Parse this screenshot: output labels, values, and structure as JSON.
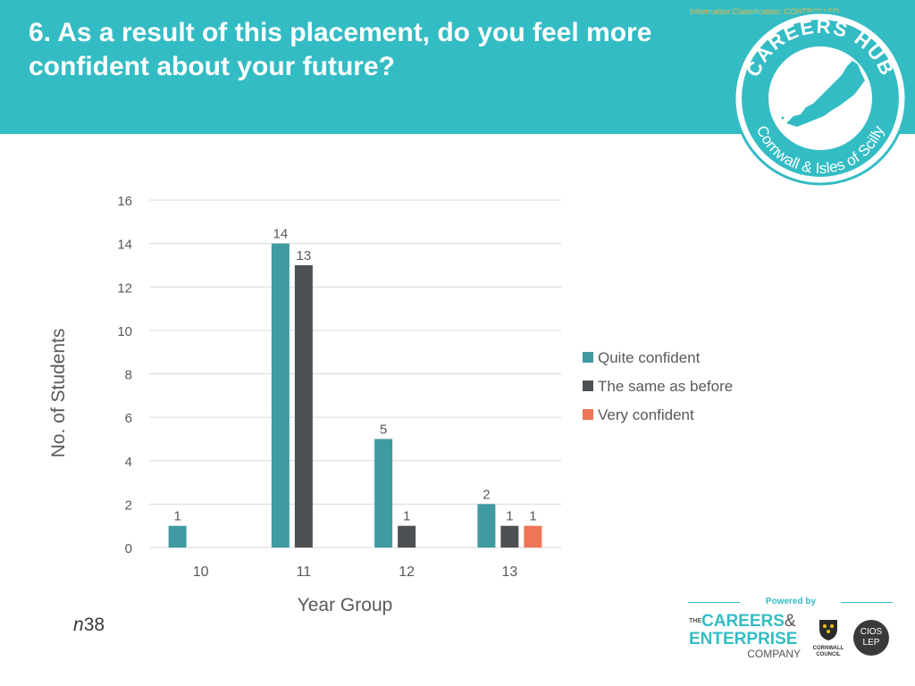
{
  "slide": {
    "title": "6. As a result of this placement, do you feel more confident about your future?",
    "classification": "Information Classification: CONTROLLED",
    "n_prefix": "n",
    "n_value": "38"
  },
  "hub_logo": {
    "top_text": "CAREERS HUB",
    "bottom_text": "Cornwall & Isles of Scilly"
  },
  "footer": {
    "powered_by": "Powered by",
    "cec_the": "THE",
    "cec_careers": "CAREERS",
    "cec_amp": "&",
    "cec_enterprise": "ENTERPRISE",
    "cec_company": "COMPANY",
    "council_small": "Cornwall Council",
    "council_name": "CORNWALL COUNCIL",
    "lep_line1": "CIOS",
    "lep_line2": "LEP"
  },
  "colors": {
    "header": "#34bcc4",
    "quite_confident": "#3f9aa2",
    "same_as_before": "#4c5053",
    "very_confident": "#ee7555",
    "grid": "#d9d9d9",
    "text": "#595959"
  },
  "chart_data": {
    "type": "bar",
    "title": "",
    "xlabel": "Year Group",
    "ylabel": "No. of Students",
    "categories": [
      "10",
      "11",
      "12",
      "13"
    ],
    "ylim": [
      0,
      16
    ],
    "yticks": [
      0,
      2,
      4,
      6,
      8,
      10,
      12,
      14,
      16
    ],
    "legend_position": "right",
    "grid": true,
    "series": [
      {
        "name": "Quite confident",
        "values": [
          1,
          14,
          5,
          2
        ],
        "color": "#3f9aa2"
      },
      {
        "name": "The same as before",
        "values": [
          0,
          13,
          1,
          1
        ],
        "color": "#4c5053"
      },
      {
        "name": "Very confident",
        "values": [
          0,
          0,
          0,
          1
        ],
        "color": "#ee7555"
      }
    ]
  }
}
